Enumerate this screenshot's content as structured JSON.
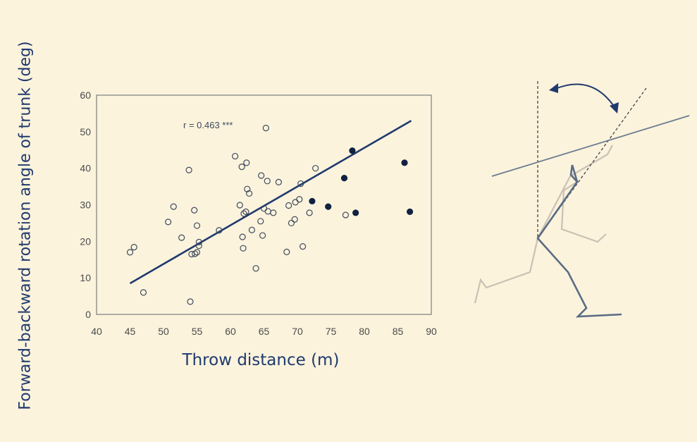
{
  "chart_data": {
    "type": "scatter",
    "title": "",
    "xlabel": "Throw distance (m)",
    "ylabel": "Forward-backward rotation angle of trunk (deg)",
    "xlim": [
      40,
      90
    ],
    "ylim": [
      0,
      60
    ],
    "xticks": [
      "40",
      "45",
      "50",
      "55",
      "60",
      "65",
      "70",
      "75",
      "80",
      "85",
      "90"
    ],
    "yticks": [
      "0",
      "10",
      "20",
      "30",
      "40",
      "50",
      "60"
    ],
    "annotation": "r = 0.463 ***",
    "regression_line": [
      [
        45,
        8.5
      ],
      [
        87,
        53
      ]
    ],
    "series": [
      {
        "marker": "open-circle",
        "points": [
          [
            45,
            17
          ],
          [
            45.6,
            18.4
          ],
          [
            47,
            6
          ],
          [
            50.7,
            25.3
          ],
          [
            51.5,
            29.5
          ],
          [
            52.7,
            21
          ],
          [
            53.8,
            39.5
          ],
          [
            54,
            3.5
          ],
          [
            54.2,
            16.5
          ],
          [
            54.6,
            28.5
          ],
          [
            54.7,
            16.6
          ],
          [
            55,
            24.3
          ],
          [
            55,
            17
          ],
          [
            55.3,
            19.8
          ],
          [
            55.3,
            18.8
          ],
          [
            58.3,
            23
          ],
          [
            60.7,
            43.3
          ],
          [
            61.4,
            29.9
          ],
          [
            61.7,
            40.4
          ],
          [
            61.8,
            21.2
          ],
          [
            61.9,
            18.1
          ],
          [
            62,
            27.6
          ],
          [
            62.3,
            28.1
          ],
          [
            62.4,
            41.5
          ],
          [
            62.5,
            34.3
          ],
          [
            62.8,
            33.1
          ],
          [
            63.2,
            23.1
          ],
          [
            63.8,
            12.6
          ],
          [
            64.5,
            25.5
          ],
          [
            64.6,
            38
          ],
          [
            64.8,
            21.6
          ],
          [
            65,
            29
          ],
          [
            65.3,
            51
          ],
          [
            65.5,
            36.5
          ],
          [
            65.6,
            28.2
          ],
          [
            66.4,
            27.8
          ],
          [
            67.2,
            36.2
          ],
          [
            68.4,
            17.1
          ],
          [
            68.7,
            29.8
          ],
          [
            69.1,
            25
          ],
          [
            69.6,
            26
          ],
          [
            69.7,
            30.7
          ],
          [
            70.3,
            31.5
          ],
          [
            70.5,
            35.8
          ],
          [
            70.8,
            18.6
          ],
          [
            71.8,
            27.8
          ],
          [
            72.7,
            40
          ],
          [
            77.2,
            27.2
          ]
        ]
      },
      {
        "marker": "filled-circle",
        "points": [
          [
            72.2,
            31
          ],
          [
            74.6,
            29.5
          ],
          [
            77,
            37.3
          ],
          [
            78.2,
            44.8
          ],
          [
            78.7,
            27.8
          ],
          [
            86,
            41.5
          ],
          [
            86.8,
            28.1
          ]
        ]
      }
    ],
    "colors": {
      "axis": "#1f3a6d",
      "line": "#1f3a6d",
      "frame": "#7c7c7c",
      "tick_text": "#4a4a4a"
    }
  },
  "figure": {
    "description_icon": "javelin-thrower-stick-figure-icon",
    "colors": {
      "front": "#5a6c85",
      "back": "#c9c1b2",
      "javelin": "#6a7d8f",
      "arrow": "#1f3a6d"
    }
  }
}
